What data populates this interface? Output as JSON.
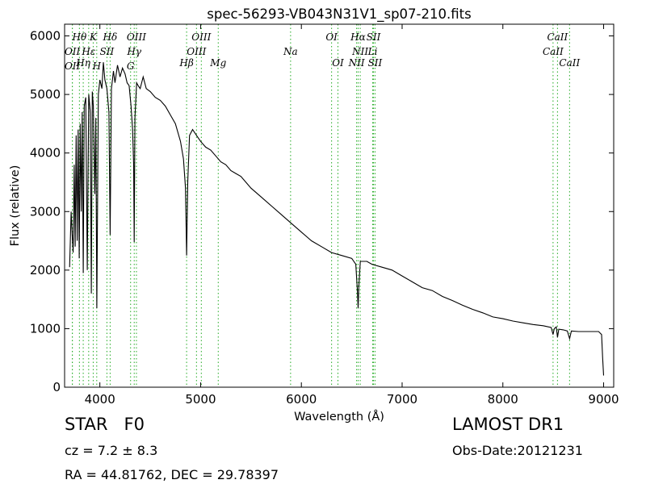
{
  "chart_data": {
    "type": "line",
    "title": "spec-56293-VB043N31V1_sp07-210.fits",
    "xlabel": "Wavelength (Å)",
    "ylabel": "Flux (relative)",
    "xlim": [
      3650,
      9100
    ],
    "ylim": [
      0,
      6200
    ],
    "x_ticks": [
      4000,
      5000,
      6000,
      7000,
      8000,
      9000
    ],
    "y_ticks": [
      0,
      1000,
      2000,
      3000,
      4000,
      5000,
      6000
    ],
    "grid": false,
    "line_color": "#000000",
    "marker_color": "#22aa22",
    "spectrum": [
      [
        3700,
        2050
      ],
      [
        3715,
        3000
      ],
      [
        3725,
        2600
      ],
      [
        3735,
        2300
      ],
      [
        3745,
        3800
      ],
      [
        3755,
        2400
      ],
      [
        3765,
        4300
      ],
      [
        3775,
        2500
      ],
      [
        3785,
        4400
      ],
      [
        3795,
        2200
      ],
      [
        3805,
        4500
      ],
      [
        3815,
        3000
      ],
      [
        3825,
        4700
      ],
      [
        3835,
        1950
      ],
      [
        3845,
        4800
      ],
      [
        3860,
        4950
      ],
      [
        3875,
        2000
      ],
      [
        3890,
        5000
      ],
      [
        3905,
        4700
      ],
      [
        3915,
        1600
      ],
      [
        3925,
        5050
      ],
      [
        3935,
        4800
      ],
      [
        3950,
        3300
      ],
      [
        3960,
        4600
      ],
      [
        3970,
        1350
      ],
      [
        3985,
        5000
      ],
      [
        4000,
        5250
      ],
      [
        4020,
        5100
      ],
      [
        4035,
        5550
      ],
      [
        4050,
        5250
      ],
      [
        4070,
        5100
      ],
      [
        4090,
        4700
      ],
      [
        4102,
        2600
      ],
      [
        4115,
        5100
      ],
      [
        4135,
        5400
      ],
      [
        4150,
        5200
      ],
      [
        4175,
        5500
      ],
      [
        4200,
        5300
      ],
      [
        4225,
        5450
      ],
      [
        4250,
        5350
      ],
      [
        4270,
        5200
      ],
      [
        4290,
        5150
      ],
      [
        4310,
        4800
      ],
      [
        4325,
        4400
      ],
      [
        4335,
        3800
      ],
      [
        4341,
        2480
      ],
      [
        4348,
        4600
      ],
      [
        4365,
        5200
      ],
      [
        4380,
        5150
      ],
      [
        4400,
        5100
      ],
      [
        4430,
        5300
      ],
      [
        4460,
        5100
      ],
      [
        4500,
        5050
      ],
      [
        4550,
        4950
      ],
      [
        4600,
        4900
      ],
      [
        4650,
        4800
      ],
      [
        4700,
        4650
      ],
      [
        4750,
        4500
      ],
      [
        4800,
        4200
      ],
      [
        4830,
        3900
      ],
      [
        4850,
        3400
      ],
      [
        4861,
        2250
      ],
      [
        4872,
        3500
      ],
      [
        4890,
        4300
      ],
      [
        4920,
        4400
      ],
      [
        4960,
        4300
      ],
      [
        5000,
        4200
      ],
      [
        5050,
        4100
      ],
      [
        5100,
        4050
      ],
      [
        5150,
        3950
      ],
      [
        5200,
        3850
      ],
      [
        5250,
        3800
      ],
      [
        5300,
        3700
      ],
      [
        5350,
        3650
      ],
      [
        5400,
        3600
      ],
      [
        5450,
        3500
      ],
      [
        5500,
        3400
      ],
      [
        5600,
        3250
      ],
      [
        5700,
        3100
      ],
      [
        5800,
        2950
      ],
      [
        5900,
        2800
      ],
      [
        6000,
        2650
      ],
      [
        6100,
        2500
      ],
      [
        6200,
        2400
      ],
      [
        6300,
        2300
      ],
      [
        6400,
        2250
      ],
      [
        6500,
        2200
      ],
      [
        6540,
        2100
      ],
      [
        6556,
        1650
      ],
      [
        6563,
        1350
      ],
      [
        6570,
        1700
      ],
      [
        6585,
        2150
      ],
      [
        6650,
        2150
      ],
      [
        6700,
        2100
      ],
      [
        6800,
        2050
      ],
      [
        6900,
        2000
      ],
      [
        7000,
        1900
      ],
      [
        7100,
        1800
      ],
      [
        7200,
        1700
      ],
      [
        7300,
        1650
      ],
      [
        7400,
        1550
      ],
      [
        7500,
        1480
      ],
      [
        7600,
        1400
      ],
      [
        7700,
        1330
      ],
      [
        7800,
        1270
      ],
      [
        7900,
        1200
      ],
      [
        8000,
        1170
      ],
      [
        8100,
        1130
      ],
      [
        8200,
        1100
      ],
      [
        8300,
        1070
      ],
      [
        8400,
        1050
      ],
      [
        8480,
        1020
      ],
      [
        8498,
        900
      ],
      [
        8510,
        1000
      ],
      [
        8530,
        1030
      ],
      [
        8542,
        850
      ],
      [
        8555,
        990
      ],
      [
        8600,
        980
      ],
      [
        8640,
        960
      ],
      [
        8662,
        830
      ],
      [
        8680,
        960
      ],
      [
        8750,
        950
      ],
      [
        8850,
        950
      ],
      [
        8950,
        950
      ],
      [
        8980,
        900
      ],
      [
        8990,
        500
      ],
      [
        9000,
        200
      ]
    ],
    "line_markers": [
      {
        "label": "Hθ",
        "x": 3797,
        "row": 0
      },
      {
        "label": "OII",
        "x": 3727,
        "row": 1
      },
      {
        "label": "OII",
        "x": 3727,
        "row": 3
      },
      {
        "label": "Hη",
        "x": 3835,
        "row": 2
      },
      {
        "label": "Hε",
        "x": 3889,
        "row": 1
      },
      {
        "label": "K",
        "x": 3934,
        "row": 0
      },
      {
        "label": "SII",
        "x": 4070,
        "row": 1
      },
      {
        "label": "H",
        "x": 3969,
        "row": 3
      },
      {
        "label": "Hδ",
        "x": 4102,
        "row": 0
      },
      {
        "label": "OIII",
        "x": 4363,
        "row": 0
      },
      {
        "label": "Hγ",
        "x": 4341,
        "row": 1
      },
      {
        "label": "G",
        "x": 4305,
        "row": 3
      },
      {
        "label": "OIII",
        "x": 5007,
        "row": 0
      },
      {
        "label": "OIII",
        "x": 4959,
        "row": 1
      },
      {
        "label": "Hβ",
        "x": 4861,
        "row": 2
      },
      {
        "label": "Mg",
        "x": 5175,
        "row": 2
      },
      {
        "label": "Na",
        "x": 5893,
        "row": 1
      },
      {
        "label": "OI",
        "x": 6300,
        "row": 0
      },
      {
        "label": "OI",
        "x": 6363,
        "row": 2
      },
      {
        "label": "Hα",
        "x": 6563,
        "row": 0
      },
      {
        "label": "SII",
        "x": 6716,
        "row": 0
      },
      {
        "label": "NII",
        "x": 6584,
        "row": 1
      },
      {
        "label": "Li",
        "x": 6708,
        "row": 1
      },
      {
        "label": "NII",
        "x": 6548,
        "row": 2
      },
      {
        "label": "SII",
        "x": 6731,
        "row": 2
      },
      {
        "label": "CaII",
        "x": 8542,
        "row": 0
      },
      {
        "label": "CaII",
        "x": 8498,
        "row": 1
      },
      {
        "label": "CaII",
        "x": 8662,
        "row": 2
      }
    ]
  },
  "info": {
    "class_label": "STAR   F0",
    "cz": "cz = 7.2 ± 8.3",
    "coords": "RA = 44.81762, DEC = 29.78397",
    "survey": "LAMOST DR1",
    "obs_date": "Obs-Date:20121231"
  }
}
